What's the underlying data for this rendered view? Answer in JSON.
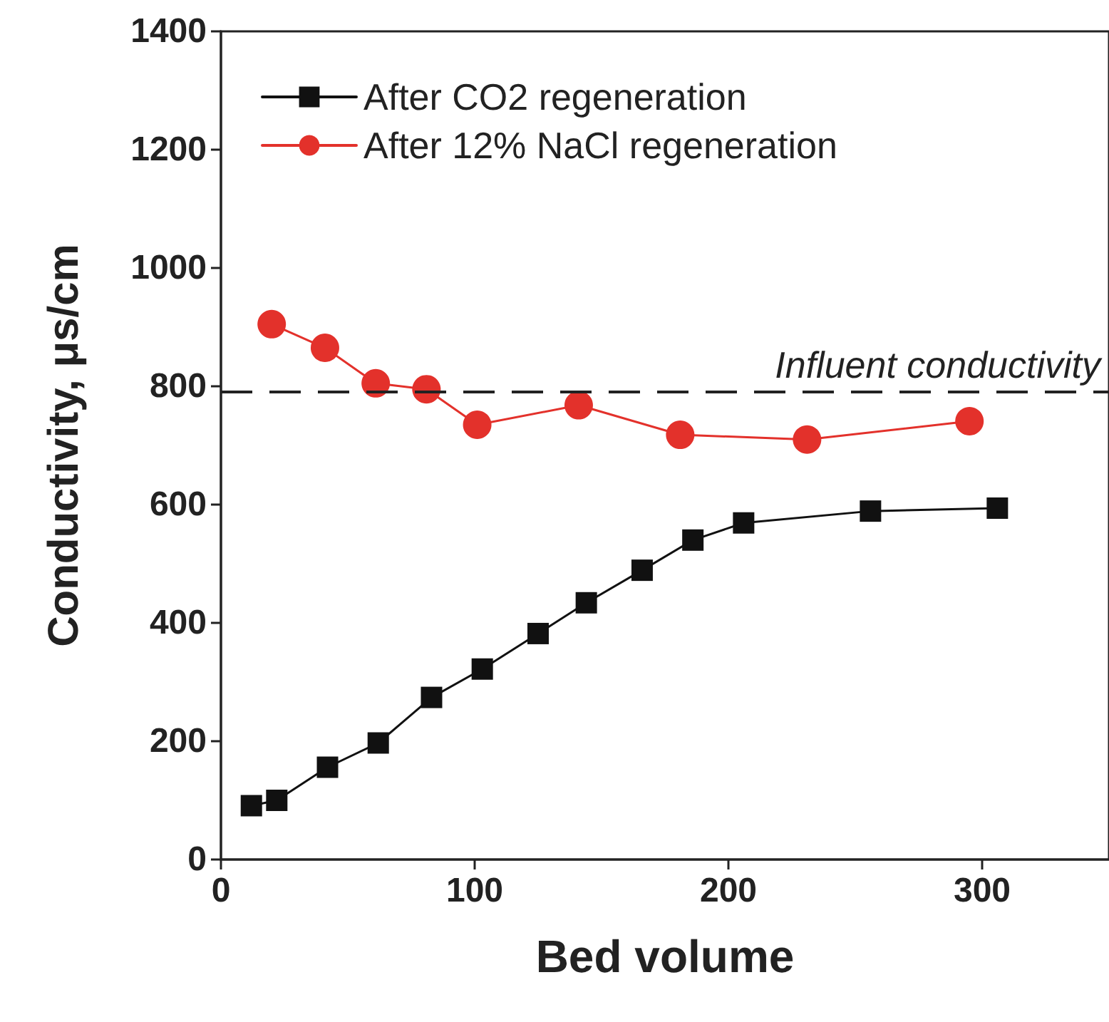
{
  "chart_data": {
    "type": "line",
    "xlabel": "Bed volume",
    "ylabel": "Conductivity, μs/cm",
    "xlim": [
      0,
      350
    ],
    "xticks": [
      0,
      100,
      200,
      300
    ],
    "ylim": [
      0,
      1400
    ],
    "yticks": [
      0,
      200,
      400,
      600,
      800,
      1000,
      1200,
      1400
    ],
    "grid": false,
    "legend": "top left",
    "line_style": "solid",
    "series": [
      {
        "name": "After CO2 regeneration",
        "color": "#111111",
        "marker": "square",
        "x": [
          12,
          22,
          42,
          62,
          83,
          103,
          125,
          144,
          166,
          186,
          206,
          256,
          306
        ],
        "values": [
          91,
          100,
          156,
          197,
          274,
          322,
          382,
          434,
          489,
          540,
          569,
          589,
          594
        ]
      },
      {
        "name": "After 12% NaCl regeneration",
        "color": "#e3312b",
        "marker": "circle",
        "x": [
          20,
          41,
          61,
          81,
          101,
          141,
          181,
          231,
          295
        ],
        "values": [
          905,
          865,
          805,
          795,
          735,
          768,
          718,
          710,
          741
        ]
      }
    ],
    "ref_lines": [
      {
        "axis": "y",
        "value": 790,
        "label": "Influent conductivity",
        "color": "#222222",
        "line_style": "dashed"
      }
    ]
  }
}
